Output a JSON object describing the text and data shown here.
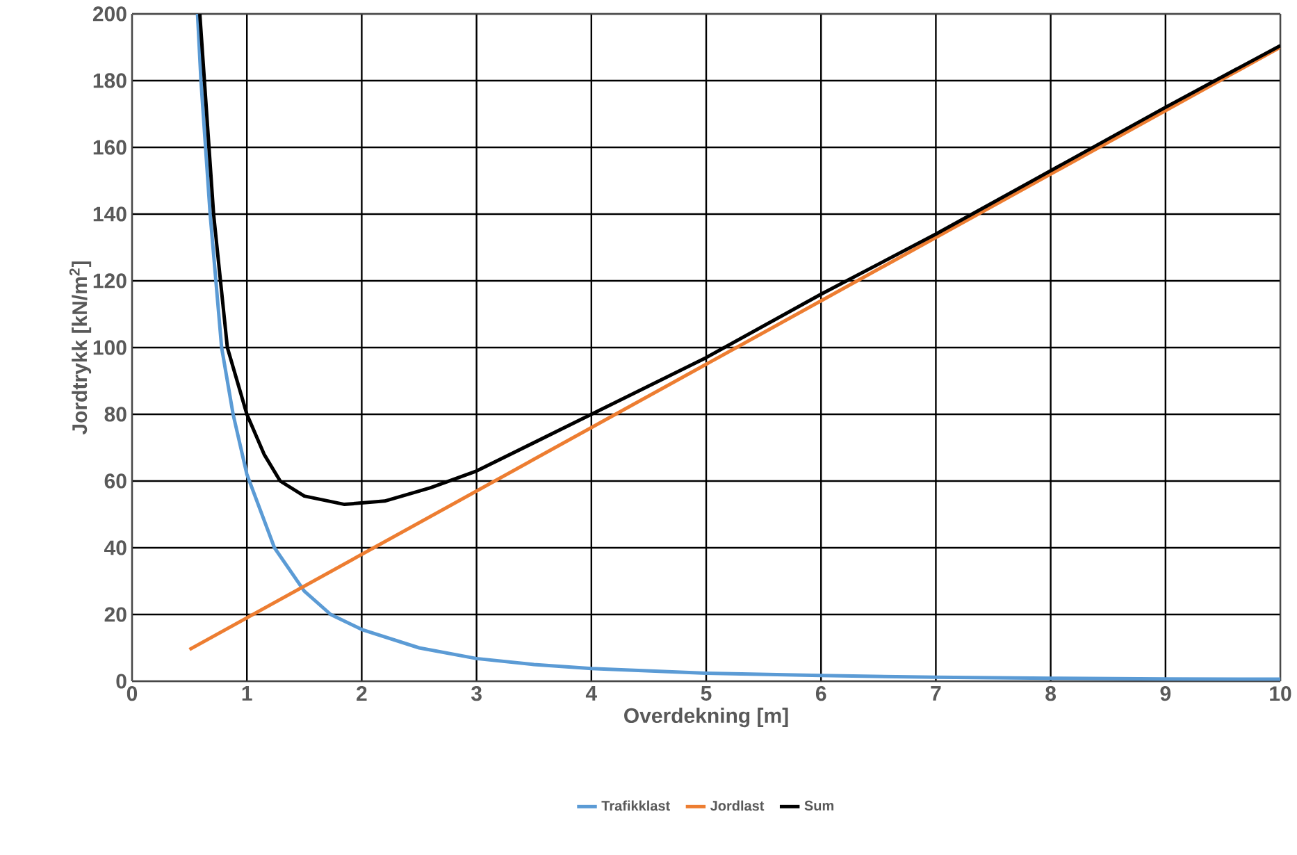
{
  "chart_data": {
    "type": "line",
    "xlabel": "Overdekning [m]",
    "ylabel": "Jordtrykk [kN/m$^{2}$]",
    "xlim": [
      0,
      10
    ],
    "ylim": [
      0,
      200
    ],
    "xticks": [
      0,
      1,
      2,
      3,
      4,
      5,
      6,
      7,
      8,
      9,
      10
    ],
    "yticks": [
      0,
      20,
      40,
      60,
      80,
      100,
      120,
      140,
      160,
      180,
      200
    ],
    "grid": true,
    "legend": "bottom",
    "marker": "none",
    "line_style": "solid",
    "series": [
      {
        "name": "Trafikklast",
        "color": "#5b9bd5",
        "x": [
          0.57,
          0.6,
          0.68,
          0.78,
          0.88,
          1.0,
          1.24,
          1.5,
          1.73,
          2,
          2.5,
          3,
          3.5,
          4,
          5,
          6,
          7,
          8,
          9,
          10
        ],
        "values": [
          200,
          180,
          140,
          100,
          80,
          62,
          40,
          27,
          20,
          15.5,
          10,
          6.8,
          5,
          3.8,
          2.4,
          1.7,
          1.2,
          0.9,
          0.7,
          0.6
        ]
      },
      {
        "name": "Jordlast",
        "color": "#ed7d31",
        "x": [
          0.5,
          10
        ],
        "values": [
          9.5,
          190
        ]
      },
      {
        "name": "Sum",
        "color": "#000000",
        "x": [
          0.59,
          0.65,
          0.71,
          0.83,
          1.0,
          1.15,
          1.29,
          1.5,
          1.85,
          2.2,
          2.6,
          3,
          4,
          5,
          6,
          7,
          8,
          9,
          10
        ],
        "values": [
          200,
          170,
          140,
          100,
          80,
          68,
          60,
          55.5,
          53,
          54,
          58,
          63,
          80,
          97,
          116,
          134,
          153,
          172,
          190.5
        ]
      }
    ]
  }
}
